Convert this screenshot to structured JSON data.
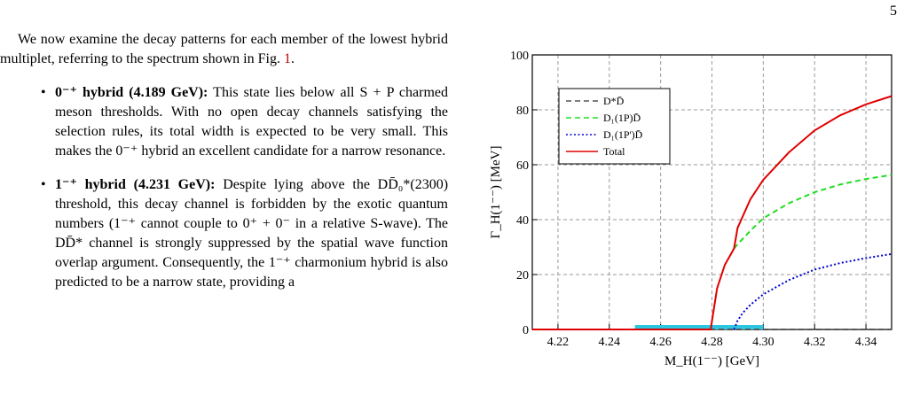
{
  "page_number": "5",
  "intro": {
    "text": "We now examine the decay patterns for each member of the lowest hybrid multiplet, referring to the spectrum shown in Fig.",
    "ref": "1",
    "end": "."
  },
  "bullets": [
    {
      "head": "0⁻⁺ hybrid (4.189 GeV):",
      "text": "This state lies below all S + P charmed meson thresholds. With no open decay channels satisfying the selection rules, its total width is expected to be very small. This makes the 0⁻⁺ hybrid an excellent candidate for a narrow resonance."
    },
    {
      "head": "1⁻⁺ hybrid (4.231 GeV):",
      "text": "Despite lying above the DD̄₀*(2300) threshold, this decay channel is forbidden by the exotic quantum numbers (1⁻⁺ cannot couple to 0⁺ + 0⁻ in a relative S-wave). The DD̄* channel is strongly suppressed by the spatial wave function overlap argument. Consequently, the 1⁻⁺ charmonium hybrid is also predicted to be a narrow state, providing a"
    }
  ],
  "colors": {
    "total": "#e00000",
    "d1_1p": "#22dd22",
    "d1_1pprime": "#0000cc",
    "dstar_d": "#555555",
    "band": "#2cc6e0",
    "grid": "#9a9a9a"
  },
  "chart_data": {
    "type": "line",
    "xlabel": "M_H(1⁻⁻) [GeV]",
    "ylabel": "Γ_H(1⁻⁻) [MeV]",
    "xlim": [
      4.21,
      4.35
    ],
    "ylim": [
      0,
      100
    ],
    "x_ticks": [
      4.22,
      4.24,
      4.26,
      4.28,
      4.3,
      4.32,
      4.34
    ],
    "x_tick_labels": [
      "4.22",
      "4.24",
      "4.26",
      "4.28",
      "4.30",
      "4.32",
      "4.34"
    ],
    "y_ticks": [
      0,
      20,
      40,
      60,
      80,
      100
    ],
    "y_tick_labels": [
      "0",
      "20",
      "40",
      "60",
      "80",
      "100"
    ],
    "grid": true,
    "legend_position": "top-left",
    "band": {
      "x": [
        4.25,
        4.3
      ]
    },
    "series": [
      {
        "name": "D*D̄",
        "key": "dstar_d",
        "style": "dashed",
        "x": [
          4.21,
          4.35
        ],
        "y": [
          0,
          0
        ]
      },
      {
        "name": "D₁(1P)D̄",
        "key": "d1_1p",
        "style": "dashed",
        "x": [
          4.2886,
          4.29,
          4.295,
          4.3,
          4.31,
          4.32,
          4.33,
          4.34,
          4.35
        ],
        "y": [
          29.5,
          31.0,
          36.0,
          40.5,
          46.0,
          50.0,
          52.8,
          54.8,
          56.3
        ]
      },
      {
        "name": "D₁(1P')D̄",
        "key": "d1_1pprime",
        "style": "dotted",
        "x": [
          4.2886,
          4.29,
          4.292,
          4.295,
          4.3,
          4.31,
          4.32,
          4.33,
          4.34,
          4.35
        ],
        "y": [
          0,
          3.2,
          6.0,
          9.0,
          12.8,
          18.0,
          21.8,
          24.2,
          26.0,
          27.5
        ]
      },
      {
        "name": "Total",
        "key": "total",
        "style": "solid",
        "x": [
          4.21,
          4.2795,
          4.2795,
          4.28,
          4.282,
          4.285,
          4.2886,
          4.29,
          4.295,
          4.3,
          4.31,
          4.32,
          4.33,
          4.34,
          4.35
        ],
        "y": [
          0,
          0,
          0,
          3.0,
          15.0,
          23.5,
          29.5,
          37.0,
          47.5,
          54.5,
          64.5,
          72.5,
          78.0,
          82.0,
          85.0
        ]
      }
    ]
  }
}
